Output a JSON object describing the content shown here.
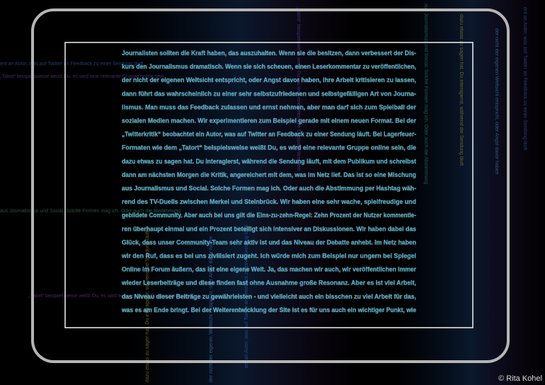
{
  "paragraph": {
    "lines": [
      "Journalisten sollten die Kraft haben, das auszuhalten. Wenn sie die besitzen, dann verbessert der Dis-",
      "kurs den Journalismus dramatisch. Wenn sie sich scheuen, einen Leserkommentar zu veröffentlichen,",
      "der nicht der eigenen Weltsicht entspricht, oder Angst davor haben, ihre Arbeit kritisieren zu lassen,",
      "dann führt das wahrscheinlich zu einer sehr selbstzufriedenen und selbstgefälligen Art von Journa-",
      "lismus. Man muss das Feedback zulassen und ernst nehmen, aber man darf sich zum Spielball der",
      "sozialen Medien machen. Wir experimentieren zum Beispiel gerade mit einem neuen Format. Bei der",
      "„Twitterkritik“ beobachtet ein Autor, was auf Twitter an Feedback zu einer Sendung läuft. Bei Lagerfeuer-",
      "Formaten wie dem „Tatort“ beispielsweise weißt Du, es wird eine relevante Gruppe online sein, die",
      "dazu etwas zu sagen hat. Du interagierst, während die Sendung läuft, mit dem Publikum und schreibst",
      "dann am nächsten Morgen die Kritik, angereichert mit dem, was im Netz lief. Das ist so eine Mischung",
      "aus Journalismus und Social. Solche Formen mag ich. Oder auch die Abstimmung per Hashtag wäh-",
      "rend des TV-Duells zwischen Merkel und Steinbrück. Wir haben eine sehr wache, spielfreudige und",
      "gebildete Community. Aber auch bei uns gilt die Eins-zu-zehn-Regel: Zehn Prozent der Nutzer kommentie-",
      "ren überhaupt einmal und ein Prozent beteiligt sich intensiver an Diskussionen. Wir haben dabei das",
      "Glück, dass unser Community-Team sehr aktiv ist und das Niveau der Debatte anhebt. Im Netz haben",
      "wir den Ruf, dass es bei uns zivilisiert zugeht. Ich würde mich zum Beispiel nur ungern bei Spiegel",
      "Online im Forum äußern, das ist eine eigene Welt. Ja, das machen wir auch, wir veröffentlichen immer",
      "wieder Leserbeiträge und diese finden fast ohne Ausnahme große Resonanz. Aber es ist viel Arbeit,",
      "das Niveau dieser Beiträge zu gewährleisten - und vielleicht auch ein bisschen zu viel Arbeit für das,",
      "was es am Ende bringt. Bei der Weiterentwicklung der Site ist es für uns auch ein wichtiger Punkt, wie"
    ]
  },
  "background_fragments": [
    "ent an Autor, was auf Twitter an Feedback zu einer Sendung läuft",
    "„Tatort“ beispielsweise weißt Du, es wird eine relevante Gruppe online sein",
    "aus Journalismus und Social. Solche Formen mag ich. Oder auch die Abstimmung",
    "dazu etwas zu sagen hat. Du interagierst, während die Sendung läuft",
    "der nicht der eigenen Weltsicht entspricht, oder Angst davor haben"
  ],
  "credit": "© Rita Kohel"
}
